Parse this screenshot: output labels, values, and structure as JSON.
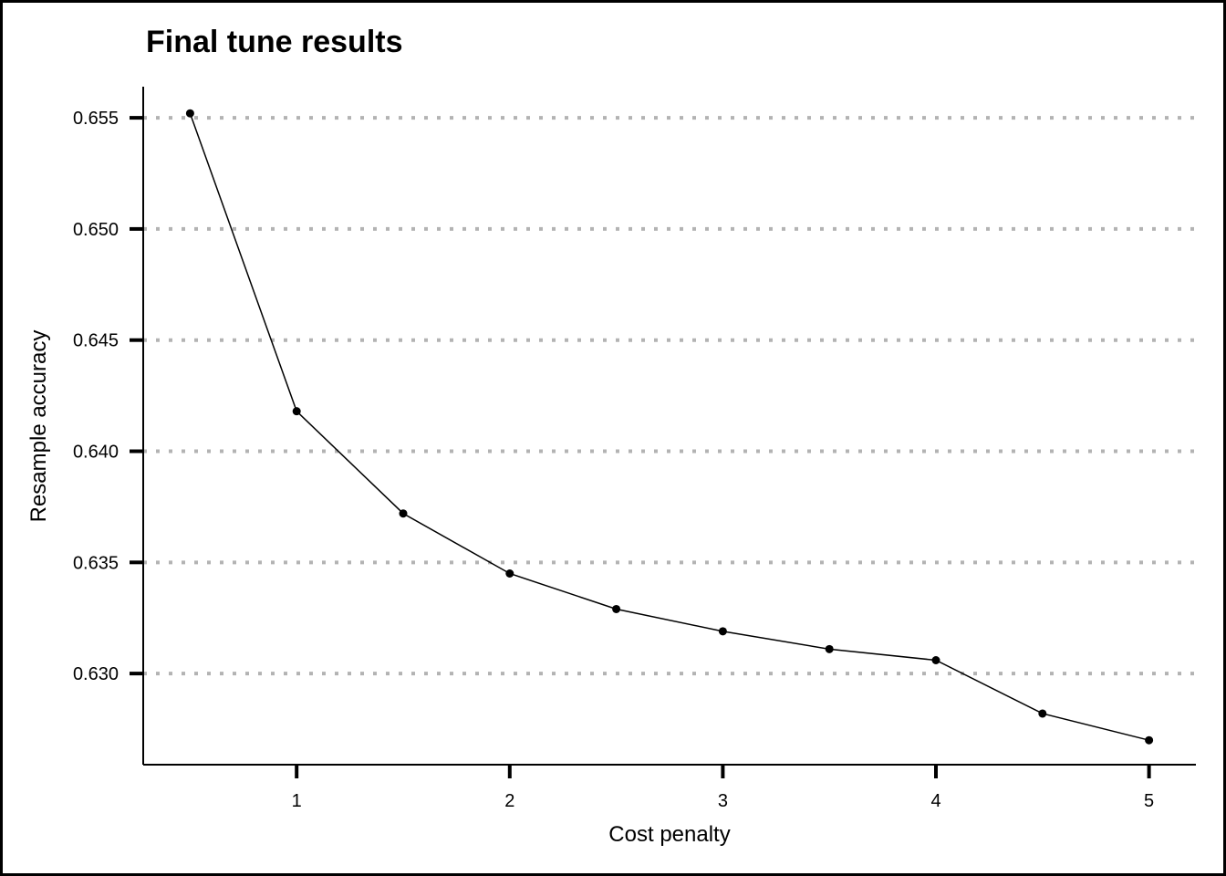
{
  "chart_data": {
    "type": "line",
    "title": "Final tune results",
    "xlabel": "Cost penalty",
    "ylabel": "Resample accuracy",
    "x_ticks": [
      1,
      2,
      3,
      4,
      5
    ],
    "y_ticks": [
      "0.630",
      "0.635",
      "0.640",
      "0.645",
      "0.650",
      "0.655"
    ],
    "xlim": [
      0.28,
      5.22
    ],
    "ylim": [
      0.6259,
      0.6564
    ],
    "grid": "horizontal dotted",
    "series": [
      {
        "x": [
          0.5,
          1,
          1.5,
          2,
          2.5,
          3,
          3.5,
          4,
          4.5,
          5
        ],
        "values": [
          0.6552,
          0.6418,
          0.6372,
          0.6345,
          0.6329,
          0.6319,
          0.6311,
          0.6306,
          0.6282,
          0.627
        ]
      }
    ],
    "colors": {
      "line": "#000000",
      "grid": "#b3b3b3",
      "points": "#000000"
    }
  }
}
